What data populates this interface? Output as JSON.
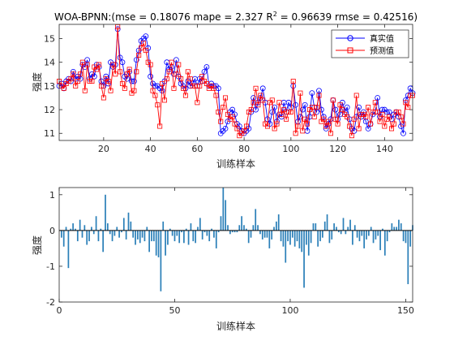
{
  "chart_data": [
    {
      "type": "line",
      "title": "WOA-BPNN:(mse = 0.18076 mape = 2.327  R",
      "title_sup": "2",
      "title_rest": " = 0.96639 rmse = 0.42516)",
      "xlabel": "训练样本",
      "ylabel": "强度",
      "xlim": [
        1,
        152
      ],
      "ylim": [
        10.7,
        15.6
      ],
      "xticks": [
        20,
        40,
        60,
        80,
        100,
        120,
        140
      ],
      "yticks": [
        11,
        12,
        13,
        14,
        15
      ],
      "legend_position": "top-right",
      "series": [
        {
          "name": "真实值",
          "color": "#0000ff",
          "marker": "circle",
          "values": [
            13.0,
            13.1,
            12.9,
            13.2,
            13.3,
            13.2,
            13.6,
            13.3,
            13.4,
            13.3,
            13.9,
            13.8,
            14.1,
            13.3,
            13.5,
            13.4,
            13.9,
            13.8,
            13.2,
            13.0,
            13.4,
            13.1,
            14.0,
            13.8,
            13.9,
            15.4,
            14.2,
            14.0,
            13.4,
            13.3,
            13.6,
            13.2,
            13.2,
            14.1,
            14.5,
            14.9,
            15.0,
            15.1,
            14.6,
            13.4,
            13.1,
            13.0,
            13.0,
            12.9,
            12.8,
            13.2,
            14.0,
            13.7,
            13.8,
            13.5,
            14.1,
            13.4,
            13.1,
            13.0,
            12.9,
            13.2,
            13.0,
            13.1,
            13.3,
            13.0,
            13.3,
            13.2,
            13.6,
            13.8,
            13.0,
            13.1,
            13.0,
            13.0,
            12.9,
            11.0,
            11.1,
            11.2,
            11.5,
            11.9,
            12.0,
            11.8,
            11.4,
            11.3,
            11.1,
            11.0,
            11.1,
            11.2,
            11.9,
            12.5,
            12.0,
            12.3,
            12.5,
            12.9,
            12.3,
            11.6,
            11.4,
            11.9,
            12.1,
            11.5,
            11.8,
            11.7,
            12.3,
            11.9,
            12.3,
            12.1,
            13.0,
            12.2,
            11.5,
            11.7,
            12.0,
            12.2,
            11.1,
            11.7,
            12.7,
            12.1,
            11.9,
            12.8,
            12.0,
            11.7,
            11.2,
            11.4,
            11.6,
            12.4,
            12.0,
            11.6,
            11.8,
            12.3,
            11.9,
            12.1,
            11.6,
            11.2,
            11.1,
            11.7,
            12.1,
            11.7,
            11.9,
            11.5,
            11.2,
            11.4,
            11.8,
            11.9,
            12.5,
            11.7,
            12.0,
            12.0,
            11.9,
            11.9,
            11.6,
            11.8,
            11.9,
            11.7,
            11.3,
            11.0,
            12.4,
            12.6,
            12.9,
            12.7
          ]
        },
        {
          "name": "预测值",
          "color": "#ff0000",
          "marker": "square",
          "values": [
            13.2,
            13.0,
            12.9,
            13.1,
            13.2,
            13.3,
            13.5,
            13.0,
            13.2,
            13.5,
            14.0,
            12.8,
            13.9,
            13.2,
            13.2,
            13.8,
            13.7,
            13.9,
            13.0,
            12.5,
            13.3,
            13.2,
            12.8,
            13.9,
            13.5,
            15.5,
            13.6,
            13.1,
            12.9,
            13.5,
            13.7,
            12.7,
            12.8,
            13.6,
            14.3,
            14.6,
            14.8,
            14.5,
            14.0,
            13.9,
            12.8,
            12.6,
            12.2,
            11.3,
            13.1,
            12.4,
            13.3,
            13.6,
            14.0,
            12.9,
            13.5,
            13.9,
            13.3,
            12.9,
            12.6,
            13.6,
            13.3,
            13.0,
            13.0,
            12.3,
            13.0,
            13.4,
            13.2,
            13.1,
            12.9,
            13.0,
            12.9,
            12.6,
            11.9,
            11.5,
            12.1,
            12.5,
            11.8,
            11.6,
            11.7,
            11.4,
            11.2,
            10.9,
            11.0,
            11.1,
            11.3,
            11.9,
            12.0,
            12.3,
            12.9,
            12.2,
            12.6,
            12.4,
            11.4,
            11.3,
            12.3,
            12.4,
            11.2,
            11.4,
            12.3,
            11.8,
            12.0,
            11.6,
            11.9,
            11.9,
            13.2,
            11.0,
            11.3,
            12.7,
            11.1,
            11.6,
            11.4,
            12.0,
            12.1,
            11.7,
            12.1,
            12.6,
            11.5,
            11.6,
            11.3,
            11.5,
            11.0,
            12.4,
            11.6,
            11.4,
            12.2,
            12.0,
            11.8,
            11.7,
            11.3,
            10.9,
            11.6,
            12.6,
            11.2,
            11.8,
            11.8,
            11.7,
            12.1,
            11.4,
            11.9,
            12.3,
            11.9,
            11.5,
            11.8,
            11.3,
            11.6,
            11.7,
            11.2,
            11.4,
            11.9,
            11.9,
            11.7,
            11.4,
            12.3,
            12.1,
            12.6,
            12.6
          ]
        }
      ]
    },
    {
      "type": "bar",
      "title": "",
      "xlabel": "训练样本",
      "ylabel": "强度",
      "xlim": [
        0,
        153
      ],
      "ylim": [
        -2,
        1.2
      ],
      "xticks": [
        0,
        50,
        100,
        150
      ],
      "yticks": [
        -2,
        -1,
        0,
        1
      ],
      "color": "#2a7fb8",
      "values": [
        -0.2,
        -0.45,
        0.1,
        -1.05,
        0.05,
        0.2,
        0.05,
        -0.3,
        0.3,
        -0.2,
        0.15,
        -0.4,
        -0.3,
        0.1,
        -0.1,
        0.4,
        -0.3,
        0.05,
        -0.6,
        1.0,
        0.2,
        -0.1,
        -0.3,
        -0.15,
        0.1,
        -0.2,
        -0.05,
        0.35,
        -0.25,
        0.5,
        0.25,
        -0.2,
        -0.4,
        -0.25,
        -0.35,
        -0.2,
        -0.3,
        0.1,
        -0.6,
        -0.3,
        -0.3,
        -0.7,
        -0.75,
        -1.7,
        0.25,
        -0.7,
        -0.4,
        0.05,
        -0.15,
        -0.3,
        -0.15,
        -0.35,
        -0.05,
        -0.35,
        0.05,
        -0.4,
        0.2,
        -0.3,
        -0.35,
        0.1,
        0.35,
        -0.25,
        -0.05,
        -0.15,
        -0.3,
        0.05,
        -0.2,
        -0.5,
        -0.05,
        0.4,
        1.2,
        0.85,
        0.15,
        -0.1,
        -0.05,
        -0.05,
        -0.05,
        0.15,
        0.4,
        0.15,
        0.05,
        -0.35,
        -0.2,
        0.15,
        0.6,
        0.15,
        -0.1,
        -0.25,
        -0.2,
        -0.2,
        -0.5,
        -0.25,
        0.1,
        0.25,
        0.45,
        -0.3,
        -0.45,
        -0.9,
        -0.3,
        -0.4,
        -0.2,
        -0.45,
        -0.3,
        -0.5,
        -0.6,
        -1.6,
        -0.4,
        -0.7,
        -0.35,
        0.2,
        0.2,
        -0.45,
        -0.3,
        -0.2,
        0.25,
        0.45,
        -0.35,
        -0.25,
        0.2,
        0.1,
        -0.05,
        -0.1,
        0.35,
        -0.1,
        0.1,
        0.3,
        -0.4,
        0.15,
        -0.2,
        -0.3,
        -0.15,
        -0.5,
        -0.25,
        -0.15,
        0.1,
        -0.35,
        -0.25,
        -0.15,
        -0.55,
        0.05,
        -0.7,
        -0.3,
        -0.05,
        0.2,
        0.1,
        0.1,
        0.3,
        0.2,
        -0.3,
        -0.35,
        -1.5,
        -0.45,
        0.15
      ]
    }
  ]
}
